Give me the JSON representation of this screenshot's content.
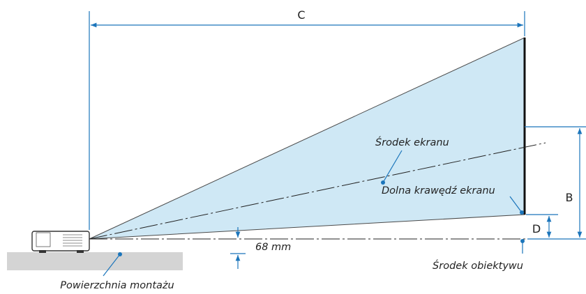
{
  "labels": {
    "c": "C",
    "b": "B",
    "d": "D",
    "screen_center": "Środek ekranu",
    "screen_bottom": "Dolna krawędź ekranu",
    "offset": "68 mm",
    "lens_center": "Środek obiektywu",
    "mount_surface": "Powierzchnia montażu"
  },
  "colors": {
    "beam_fill": "#cfe8f5",
    "dimension": "#1b75bb",
    "screen": "#111111",
    "surface": "#d4d4d4"
  }
}
